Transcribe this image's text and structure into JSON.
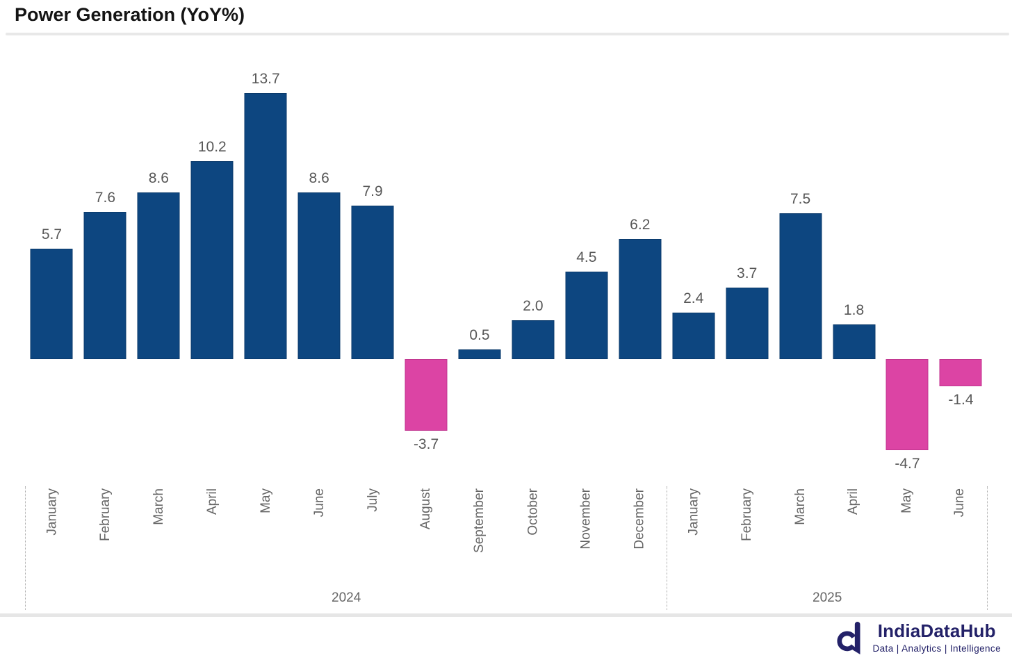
{
  "title": "Power Generation (YoY%)",
  "chart_data": {
    "type": "bar",
    "title": "Power Generation (YoY%)",
    "xlabel": "",
    "ylabel": "YoY %",
    "ylim": [
      -6,
      15
    ],
    "grid": false,
    "legend": "none",
    "value_labels_shown": true,
    "label_format": "one-decimal",
    "groups": [
      {
        "year": "2024",
        "categories": [
          "January",
          "February",
          "March",
          "April",
          "May",
          "June",
          "July",
          "August",
          "September",
          "October",
          "November",
          "December"
        ],
        "values": [
          5.7,
          7.6,
          8.6,
          10.2,
          13.7,
          8.6,
          7.9,
          -3.7,
          0.5,
          2.0,
          4.5,
          6.2
        ]
      },
      {
        "year": "2025",
        "categories": [
          "January",
          "February",
          "March",
          "April",
          "May",
          "June"
        ],
        "values": [
          2.4,
          3.7,
          7.5,
          1.8,
          -4.7,
          -1.4
        ]
      }
    ],
    "colors": {
      "positive_bar": "#0d4680",
      "positive_bar_border": "#0a3a6b",
      "negative_bar": "#dc44a4",
      "negative_bar_border": "#c23590",
      "value_label": "#575757",
      "axis_label": "#666666",
      "separator_dotted": "#a9a9a9",
      "divider": "#e8e8e8"
    }
  },
  "footer": {
    "brand": "IndiaDataHub",
    "tagline": "Data | Analytics | Intelligence",
    "logo_icon": "indiadatahub-d-mark",
    "brand_color": "#232168"
  }
}
